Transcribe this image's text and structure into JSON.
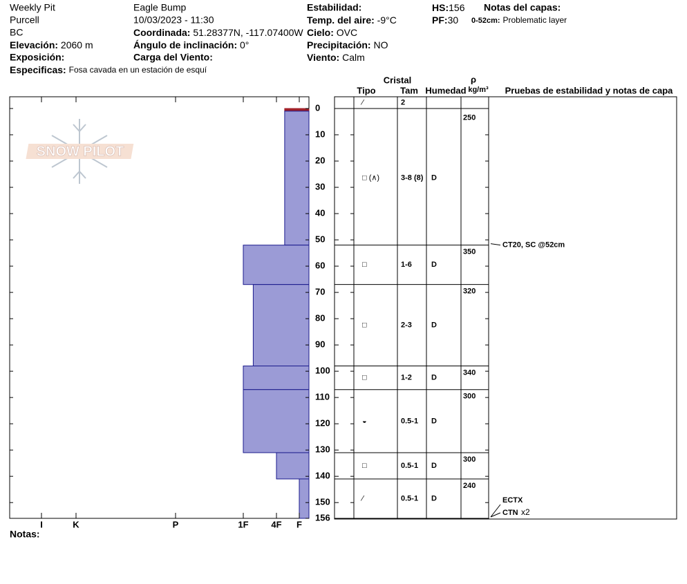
{
  "header": {
    "site": {
      "pit_name": "Weekly Pit",
      "range": "Purcell",
      "state": "BC",
      "location": "Eagle Bump",
      "datetime": "10/03/2023 - 11:30"
    },
    "elevation": {
      "label": "Elevación:",
      "value": "2060 m"
    },
    "aspect": {
      "label": "Exposición:"
    },
    "specifics": {
      "label": "Especificas:",
      "value": "Fosa cavada en un estación de esquí"
    },
    "coordinates": {
      "label": "Coordinada:",
      "value": "51.28377N, -117.07400W"
    },
    "slope": {
      "label": "Ángulo de inclinación:",
      "value": "0°"
    },
    "wind_loading": {
      "label": "Carga del Viento:"
    },
    "stability": {
      "label": "Estabilidad:"
    },
    "air_temp": {
      "label": "Temp. del aire:",
      "value": "-9°C"
    },
    "sky": {
      "label": "Cielo:",
      "value": "OVC"
    },
    "precipitation": {
      "label": "Precipitación:",
      "value": "NO"
    },
    "wind": {
      "label": "Viento:",
      "value": "Calm"
    },
    "hs": {
      "label": "HS:",
      "value": 156
    },
    "pf": {
      "label": "PF:",
      "value": 30
    },
    "layer_notes": {
      "label": "Notas del capas:",
      "range": "0-52cm:",
      "note": "Problematic layer"
    },
    "logo": "SNOW PILOT"
  },
  "chart_data": {
    "type": "snow-profile",
    "ylim": [
      0,
      156
    ],
    "yticks": [
      0,
      10,
      20,
      30,
      40,
      50,
      60,
      70,
      80,
      90,
      100,
      110,
      120,
      130,
      140,
      150,
      156
    ],
    "xticks": [
      {
        "value": 1,
        "label": "F"
      },
      {
        "value": 2,
        "label": "4F"
      },
      {
        "value": 3,
        "label": "1F"
      },
      {
        "value": 4,
        "label": "P"
      },
      {
        "value": 5,
        "label": "K"
      },
      {
        "value": 6,
        "label": "I"
      }
    ],
    "columns": {
      "crystal": "Cristal",
      "type": "Tipo",
      "size": "Tam",
      "moisture": "Humedad",
      "rho": "ρ",
      "density_unit": "kg/m³",
      "tests": "Pruebas de estabilidad y notas de capa"
    },
    "layers": [
      {
        "top": 0,
        "bottom": 1,
        "hardness": 1.64,
        "color": "#a0202a",
        "grain_type": "⁄",
        "grain_size": "2",
        "moisture": null,
        "density": null
      },
      {
        "top": 1,
        "bottom": 52,
        "hardness": 1.64,
        "color": "#9b9bd6",
        "grain_type": "□ (∧)",
        "grain_size": "3-8 (8)",
        "moisture": "D",
        "density": 250
      },
      {
        "top": 52,
        "bottom": 67,
        "hardness": 3,
        "color": "#9b9bd6",
        "grain_type": "□",
        "grain_size": "1-6",
        "moisture": "D",
        "density": 350
      },
      {
        "top": 67,
        "bottom": 98,
        "hardness": 2.7,
        "color": "#9b9bd6",
        "grain_type": "□",
        "grain_size": "2-3",
        "moisture": "D",
        "density": 320
      },
      {
        "top": 98,
        "bottom": 107,
        "hardness": 3,
        "color": "#9b9bd6",
        "grain_type": "□",
        "grain_size": "1-2",
        "moisture": "D",
        "density": 340
      },
      {
        "top": 107,
        "bottom": 131,
        "hardness": 3,
        "color": "#9b9bd6",
        "grain_type": "◒",
        "grain_size": "0.5-1",
        "moisture": "D",
        "density": 300
      },
      {
        "top": 131,
        "bottom": 141,
        "hardness": 2,
        "color": "#9b9bd6",
        "grain_type": "□",
        "grain_size": "0.5-1",
        "moisture": "D",
        "density": 300
      },
      {
        "top": 141,
        "bottom": 156,
        "hardness": 1,
        "color": "#9b9bd6",
        "grain_type": "⁄",
        "grain_size": "0.5-1",
        "moisture": "D",
        "density": 240
      }
    ],
    "tests": [
      {
        "depth": 52,
        "label": "CT20, SC @52cm"
      },
      {
        "depth": 156,
        "label": "ECTX"
      },
      {
        "depth": 156,
        "label": "CTN",
        "multiplier": "x2"
      }
    ],
    "notes_label": "Notas:"
  }
}
